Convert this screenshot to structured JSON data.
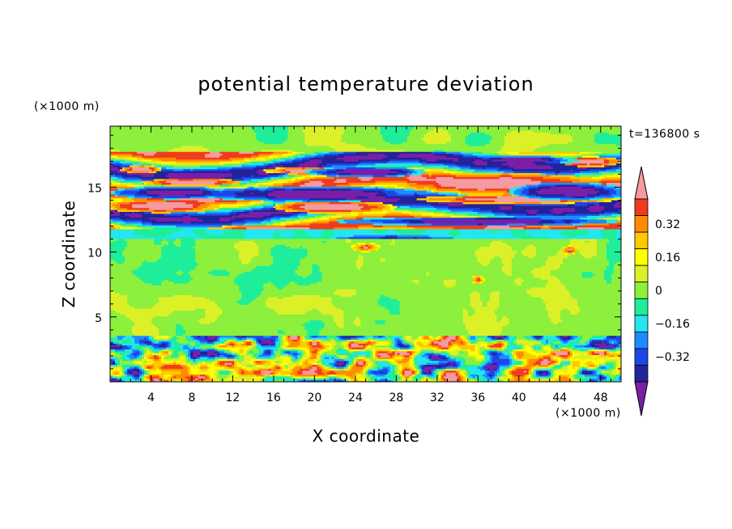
{
  "chart_data": {
    "type": "heatmap",
    "title": "potential temperature deviation",
    "xlabel": "X coordinate",
    "ylabel": "Z coordinate",
    "x_unit": "(×1000 m)",
    "y_unit": "(×1000 m)",
    "time_label": "t=136800 s",
    "xlim": [
      0,
      50
    ],
    "ylim": [
      0,
      19.7
    ],
    "x_ticks": [
      "4",
      "8",
      "12",
      "16",
      "20",
      "24",
      "28",
      "32",
      "36",
      "40",
      "44",
      "48"
    ],
    "y_ticks": [
      "5",
      "10",
      "15"
    ],
    "colorbar": {
      "levels": [
        -0.48,
        -0.4,
        -0.32,
        -0.24,
        -0.16,
        -0.08,
        0,
        0.08,
        0.16,
        0.24,
        0.32,
        0.4,
        0.48
      ],
      "colors": [
        "#7a1fa8",
        "#23239a",
        "#1e46e8",
        "#1e8cff",
        "#23e6f0",
        "#1eee9a",
        "#8cf03c",
        "#dcf028",
        "#ffff00",
        "#ffc800",
        "#ff8c00",
        "#f03c1e",
        "#f59aa0"
      ],
      "tick_labels": [
        "0.32",
        "0.16",
        "0",
        "−0.16",
        "−0.32"
      ]
    },
    "regions": [
      {
        "zmin": 0,
        "zmax": 3.6,
        "note": "boundary layer: alternating warm/cold anomalies, range about -0.48 to 0.48"
      },
      {
        "zmin": 3.6,
        "zmax": 11,
        "note": "mid troposphere: weak anomalies about -0.08 to 0.08"
      },
      {
        "zmin": 11,
        "zmax": 17.5,
        "note": "upper layer: strong alternating bands, about -0.48 to 0.48"
      },
      {
        "zmin": 17.5,
        "zmax": 19.7,
        "note": "top: weak anomalies about -0.08 to 0.08"
      }
    ]
  }
}
